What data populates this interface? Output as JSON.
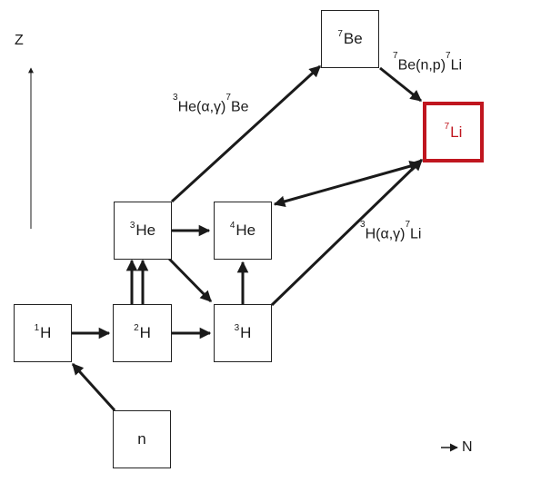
{
  "nuclides": {
    "n": {
      "sup": "",
      "sym": "n"
    },
    "h1": {
      "sup": "1",
      "sym": "H"
    },
    "h2": {
      "sup": "2",
      "sym": "H"
    },
    "h3": {
      "sup": "3",
      "sym": "H"
    },
    "he3": {
      "sup": "3",
      "sym": "He"
    },
    "he4": {
      "sup": "4",
      "sym": "He"
    },
    "be7": {
      "sup": "7",
      "sym": "Be"
    },
    "li7": {
      "sup": "7",
      "sym": "Li"
    }
  },
  "reactions": {
    "he3_to_be7": {
      "a": "3",
      "b": "He(α,γ)",
      "c": "7",
      "d": "Be"
    },
    "be7_to_li7": {
      "a": "7",
      "b": "Be(n,p)",
      "c": "7",
      "d": "Li"
    },
    "h3_to_li7": {
      "a": "3",
      "b": "H(α,γ)",
      "c": "7",
      "d": "Li"
    }
  },
  "axes": {
    "z_label": "Z",
    "n_label": "N"
  },
  "colors": {
    "highlight": "#c0161f",
    "line": "#1a1a1a"
  }
}
